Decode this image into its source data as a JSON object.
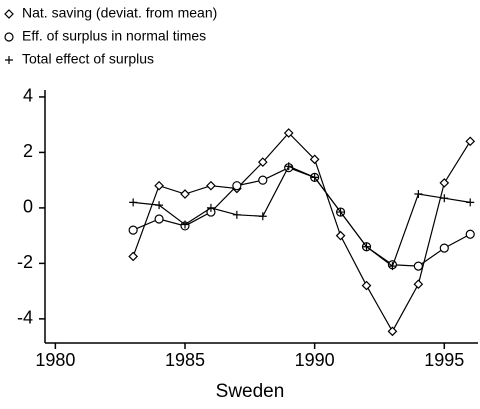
{
  "chart_data": {
    "type": "line",
    "xlabel": "Sweden",
    "x": [
      1983,
      1984,
      1985,
      1986,
      1987,
      1988,
      1989,
      1990,
      1991,
      1992,
      1993,
      1994,
      1995,
      1996
    ],
    "series": [
      {
        "name": "Nat. saving (deviat. from mean)",
        "color": "#000000",
        "marker": "diamond",
        "values": [
          -1.75,
          0.8,
          0.5,
          0.8,
          0.7,
          1.65,
          2.7,
          1.75,
          -1.0,
          -2.8,
          -4.45,
          -2.75,
          0.9,
          2.4
        ]
      },
      {
        "name": "Eff. of surplus in normal times",
        "color": "#000000",
        "marker": "circle",
        "values": [
          -0.8,
          -0.4,
          -0.65,
          -0.15,
          0.8,
          1.0,
          1.45,
          1.1,
          -0.15,
          -1.4,
          -2.05,
          -2.1,
          -1.45,
          -0.95
        ]
      },
      {
        "name": "Total effect of surplus",
        "color": "#000000",
        "marker": "plus",
        "values": [
          0.2,
          0.1,
          -0.6,
          0.0,
          -0.25,
          -0.3,
          1.5,
          1.1,
          -0.15,
          -1.4,
          -2.1,
          0.5,
          0.35,
          0.2
        ]
      }
    ],
    "xlim": [
      1979.6,
      1996.3
    ],
    "xticks": [
      1980,
      1985,
      1990,
      1995
    ],
    "ylim": [
      -4.87,
      4.25
    ],
    "yticks": [
      -4,
      -2,
      0,
      2,
      4
    ],
    "grid": false,
    "legend": "top-left"
  }
}
